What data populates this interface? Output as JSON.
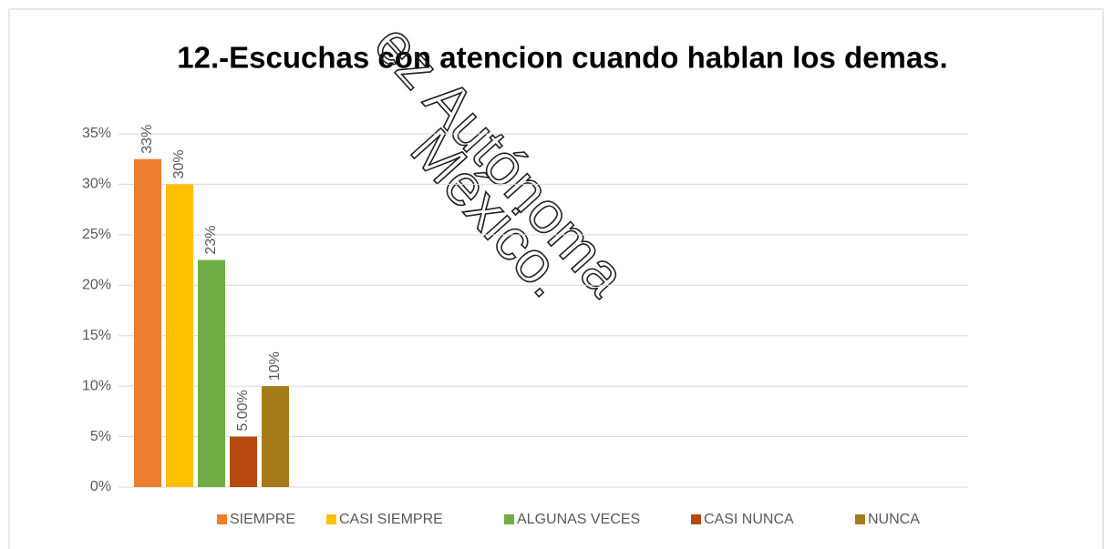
{
  "chart_data": {
    "type": "bar",
    "title": "12.-Escuchas con atencion cuando hablan los demas.",
    "series": [
      {
        "name": "SIEMPRE",
        "color": "#ed7d31",
        "values": [
          32.5
        ],
        "value_labels": [
          "33%"
        ]
      },
      {
        "name": "CASI SIEMPRE",
        "color": "#ffc000",
        "values": [
          30
        ],
        "value_labels": [
          "30%"
        ]
      },
      {
        "name": "ALGUNAS VECES",
        "color": "#70ad47",
        "values": [
          22.5
        ],
        "value_labels": [
          "23%"
        ]
      },
      {
        "name": "CASI NUNCA",
        "color": "#b5490f",
        "values": [
          5
        ],
        "value_labels": [
          "5.00%"
        ]
      },
      {
        "name": "NUNCA",
        "color": "#a67c1a",
        "values": [
          10
        ],
        "value_labels": [
          "10%"
        ]
      }
    ],
    "ylim": [
      0,
      35
    ],
    "yticks": [
      {
        "value": 0,
        "label": "0%"
      },
      {
        "value": 5,
        "label": "5%"
      },
      {
        "value": 10,
        "label": "10%"
      },
      {
        "value": 15,
        "label": "15%"
      },
      {
        "value": 20,
        "label": "20%"
      },
      {
        "value": 25,
        "label": "25%"
      },
      {
        "value": 30,
        "label": "30%"
      },
      {
        "value": 35,
        "label": "35%"
      }
    ],
    "grid": true,
    "legend": "bottom",
    "watermark": [
      "ez Autónoma",
      "México."
    ]
  }
}
